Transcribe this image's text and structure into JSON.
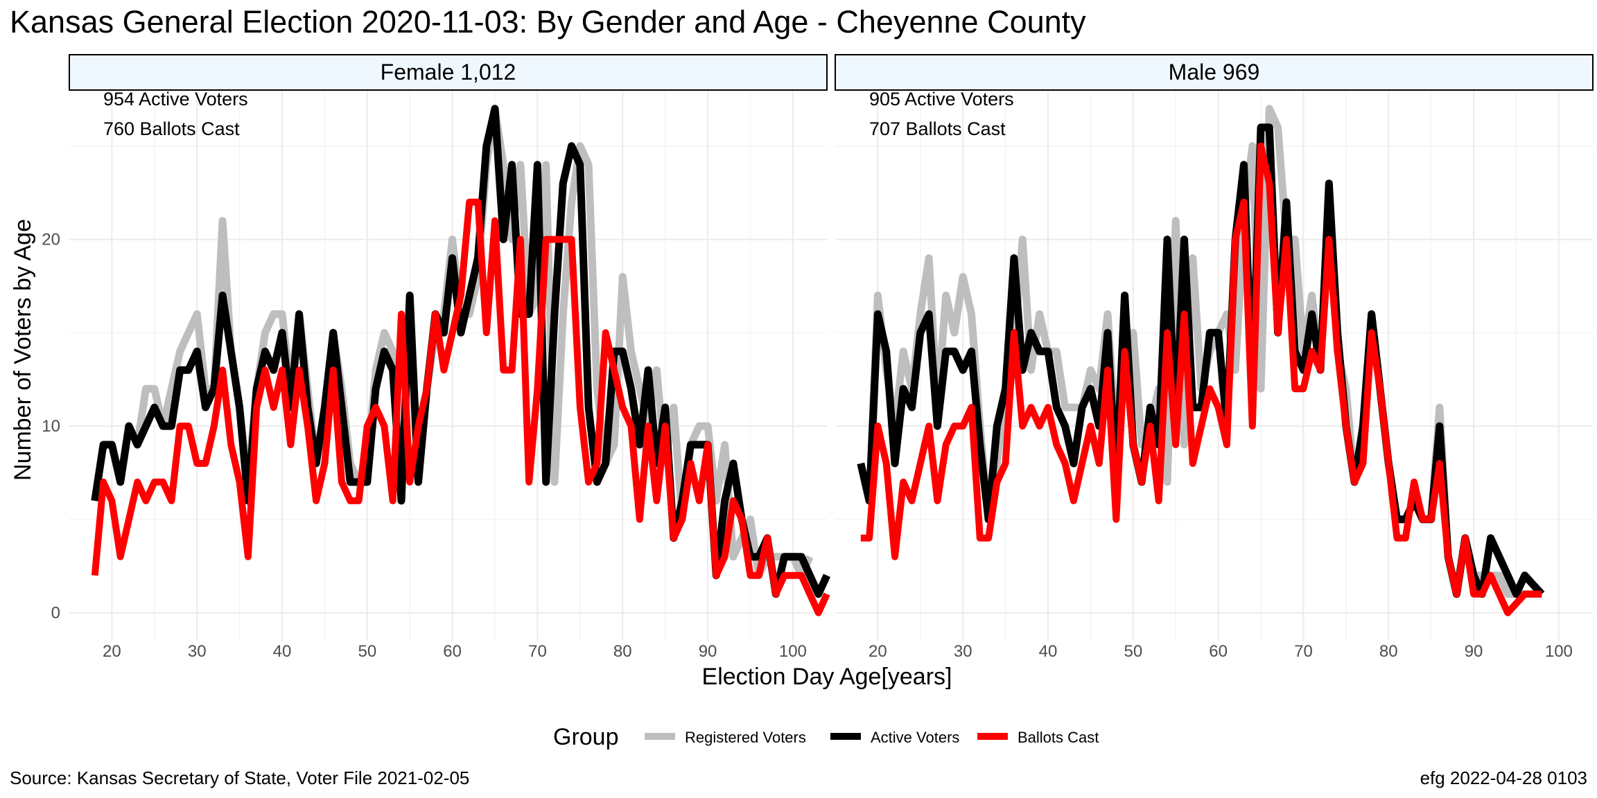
{
  "title": "Kansas General Election 2020-11-03:  By Gender and Age - Cheyenne County",
  "source": "Source:  Kansas Secretary of State, Voter File  2021-02-05",
  "stamp": "efg 2022-04-28 0103",
  "colors": {
    "registered": "#bebebe",
    "active": "#000000",
    "ballots": "#ff0000",
    "strip": "#f0f8ff",
    "grid": "#ebebeb"
  },
  "chart_data": {
    "type": "line",
    "xlabel": "Election Day Age[years]",
    "ylabel": "Number of Voters by Age",
    "xlim": [
      15,
      104
    ],
    "ylim": [
      -1.5,
      28
    ],
    "xticks": [
      20,
      30,
      40,
      50,
      60,
      70,
      80,
      90,
      100
    ],
    "yticks": [
      0,
      10,
      20
    ],
    "legend": {
      "title": "Group",
      "position": "bottom",
      "entries": [
        "Registered Voters",
        "Active Voters",
        "Ballots Cast"
      ]
    },
    "panels": [
      {
        "strip": "Female 1,012",
        "annotations": [
          "954 Active Voters",
          "760 Ballots Cast"
        ],
        "x_start": 18,
        "series": [
          {
            "name": "Registered Voters",
            "values": [
              6,
              9,
              9,
              7,
              10,
              9,
              12,
              12,
              10,
              12,
              14,
              15,
              16,
              12,
              12,
              21,
              14,
              11,
              7,
              12,
              15,
              16,
              16,
              12,
              16,
              12,
              8,
              11,
              15,
              12,
              8,
              7,
              8,
              13,
              15,
              14,
              6,
              15,
              7,
              12,
              15,
              16,
              20,
              16,
              16,
              18,
              24,
              27,
              24,
              20,
              24,
              16,
              17,
              24,
              7,
              16,
              22,
              25,
              24,
              12,
              8,
              9,
              18,
              14,
              12,
              10,
              13,
              8,
              11,
              5,
              9,
              10,
              10,
              6,
              9,
              3,
              4,
              5,
              2,
              3,
              3,
              3,
              3,
              2,
              3
            ]
          },
          {
            "name": "Active Voters",
            "values": [
              6,
              9,
              9,
              7,
              10,
              9,
              10,
              11,
              10,
              10,
              13,
              13,
              14,
              11,
              12,
              17,
              14,
              11,
              6,
              12,
              14,
              13,
              15,
              11,
              16,
              11,
              8,
              11,
              15,
              11,
              7,
              7,
              7,
              12,
              14,
              13,
              6,
              17,
              7,
              12,
              16,
              15,
              19,
              15,
              17,
              19,
              25,
              27,
              20,
              24,
              16,
              16,
              24,
              7,
              16,
              23,
              25,
              24,
              11,
              7,
              8,
              14,
              14,
              12,
              9,
              13,
              8,
              11,
              4,
              6,
              9,
              9,
              9,
              2,
              6,
              8,
              5,
              3,
              3,
              4,
              1,
              3,
              3,
              3,
              2,
              1,
              2
            ]
          },
          {
            "name": "Ballots Cast",
            "values": [
              2,
              7,
              6,
              3,
              5,
              7,
              6,
              7,
              7,
              6,
              10,
              10,
              8,
              8,
              10,
              13,
              9,
              7,
              3,
              11,
              13,
              11,
              13,
              9,
              13,
              10,
              6,
              8,
              13,
              7,
              6,
              6,
              10,
              11,
              10,
              6,
              16,
              7,
              10,
              12,
              16,
              13,
              15,
              17,
              22,
              22,
              15,
              21,
              13,
              13,
              20,
              7,
              12,
              20,
              20,
              20,
              20,
              11,
              7,
              8,
              15,
              13,
              11,
              10,
              5,
              10,
              6,
              10,
              4,
              5,
              8,
              6,
              9,
              2,
              3,
              6,
              5,
              2,
              2,
              4,
              1,
              2,
              2,
              2,
              1,
              0,
              1
            ]
          }
        ]
      },
      {
        "strip": "Male 969",
        "annotations": [
          "905 Active Voters",
          "707 Ballots Cast"
        ],
        "x_start": 18,
        "series": [
          {
            "name": "Registered Voters",
            "values": [
              8,
              6,
              17,
              13,
              10,
              14,
              12,
              16,
              19,
              11,
              17,
              15,
              18,
              16,
              10,
              5,
              8,
              12,
              14,
              20,
              13,
              16,
              14,
              14,
              11,
              11,
              11,
              13,
              12,
              16,
              9,
              13,
              15,
              9,
              10,
              12,
              7,
              21,
              9,
              19,
              12,
              14,
              15,
              16,
              13,
              21,
              25,
              12,
              27,
              26,
              20,
              20,
              14,
              17,
              13,
              22,
              14,
              12,
              7,
              10,
              16,
              12,
              8,
              5,
              5,
              6,
              5,
              5,
              11,
              3,
              1,
              4,
              2,
              2,
              2,
              2,
              1,
              1,
              1,
              1,
              1
            ]
          },
          {
            "name": "Active Voters",
            "values": [
              8,
              6,
              16,
              14,
              8,
              12,
              11,
              15,
              16,
              10,
              14,
              14,
              13,
              14,
              9,
              5,
              10,
              12,
              19,
              13,
              15,
              14,
              14,
              11,
              10,
              8,
              11,
              12,
              10,
              15,
              7,
              17,
              9,
              7,
              11,
              9,
              20,
              10,
              20,
              11,
              11,
              15,
              15,
              10,
              20,
              24,
              12,
              26,
              26,
              15,
              22,
              14,
              13,
              16,
              13,
              23,
              15,
              10,
              7,
              10,
              16,
              12,
              8,
              5,
              5,
              6,
              5,
              5,
              10,
              3,
              1,
              4,
              2,
              1,
              4,
              3,
              2,
              1,
              2,
              1.5,
              1
            ]
          },
          {
            "name": "Ballots Cast",
            "values": [
              4,
              4,
              10,
              8,
              3,
              7,
              6,
              8,
              10,
              6,
              9,
              10,
              10,
              11,
              4,
              4,
              7,
              8,
              15,
              10,
              11,
              10,
              11,
              9,
              8,
              6,
              8,
              10,
              8,
              13,
              5,
              14,
              9,
              7,
              10,
              6,
              15,
              9,
              16,
              8,
              10,
              12,
              11,
              9,
              20,
              22,
              10,
              25,
              23,
              15,
              20,
              12,
              12,
              14,
              13,
              20,
              14,
              10,
              7,
              8,
              15,
              12,
              8,
              4,
              4,
              7,
              5,
              5,
              8,
              3,
              1,
              4,
              1,
              1,
              2,
              1,
              0,
              0.5,
              1,
              1,
              1
            ]
          }
        ]
      }
    ]
  }
}
